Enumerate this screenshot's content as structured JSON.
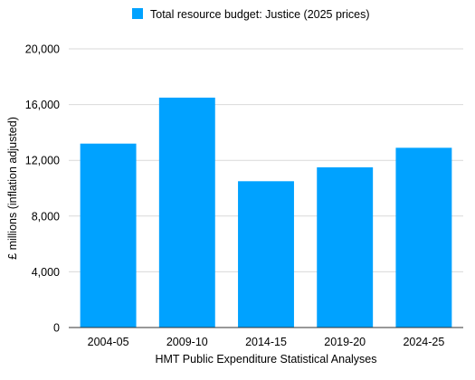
{
  "chart_data": {
    "type": "bar",
    "categories": [
      "2004-05",
      "2009-10",
      "2014-15",
      "2019-20",
      "2024-25"
    ],
    "series": [
      {
        "name": "Total resource budget: Justice (2025 prices)",
        "values": [
          13200,
          16500,
          10500,
          11500,
          12900
        ],
        "color": "#00a2ff"
      }
    ],
    "yticks": [
      "0",
      "4,000",
      "8,000",
      "12,000",
      "16,000",
      "20,000"
    ],
    "ylim": [
      0,
      20000
    ],
    "xlabel": "HMT Public Expenditure Statistical Analyses",
    "ylabel": "£ millions (inflation adjusted)",
    "legend_position": "top-center",
    "grid": true
  }
}
